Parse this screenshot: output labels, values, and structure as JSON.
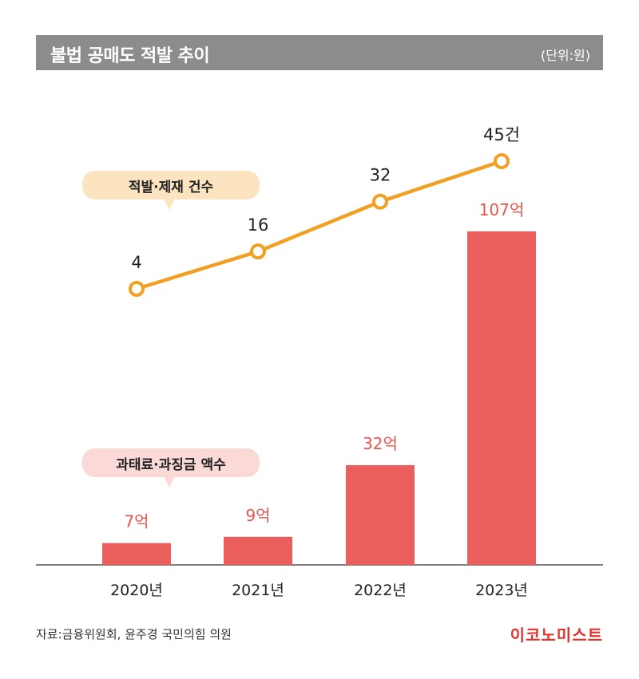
{
  "header": {
    "title": "불법 공매도 적발 추이",
    "unit": "(단위:원)"
  },
  "callouts": {
    "line_label": "적발·제재 건수",
    "bar_label": "과태료·과징금 액수"
  },
  "footer": {
    "source": "자료:금융위원회, 윤주경 국민의힘 의원",
    "logo": "이코노미스트"
  },
  "colors": {
    "bar": "#ea5f5c",
    "bar_label": "#e8554f",
    "line": "#f2a024",
    "title_bg": "#8c8c8c"
  },
  "chart_data": {
    "type": "bar+line",
    "categories": [
      "2020년",
      "2021년",
      "2022년",
      "2023년"
    ],
    "series": [
      {
        "name": "과태료·과징금 액수",
        "type": "bar",
        "values": [
          7,
          9,
          32,
          107
        ],
        "labels": [
          "7억",
          "9억",
          "32억",
          "107억"
        ]
      },
      {
        "name": "적발·제재 건수",
        "type": "line",
        "values": [
          4,
          16,
          32,
          45
        ],
        "labels": [
          "4",
          "16",
          "32",
          "45건"
        ]
      }
    ]
  }
}
